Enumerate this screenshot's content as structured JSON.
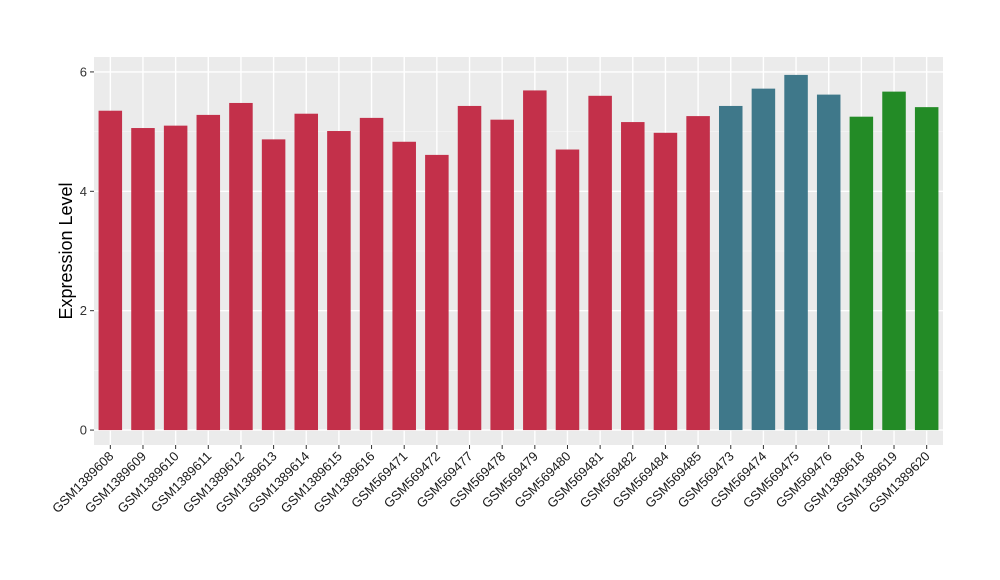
{
  "chart_data": {
    "type": "bar",
    "title": "",
    "xlabel": "",
    "ylabel": "Expression Level",
    "ylim": [
      -0.25,
      6.25
    ],
    "yticks": [
      0,
      2,
      4,
      6
    ],
    "grid": true,
    "legend": "none",
    "categories": [
      "GSM1389608",
      "GSM1389609",
      "GSM1389610",
      "GSM1389611",
      "GSM1389612",
      "GSM1389613",
      "GSM1389614",
      "GSM1389615",
      "GSM1389616",
      "GSM569471",
      "GSM569472",
      "GSM569477",
      "GSM569478",
      "GSM569479",
      "GSM569480",
      "GSM569481",
      "GSM569482",
      "GSM569484",
      "GSM569485",
      "GSM569473",
      "GSM569474",
      "GSM569475",
      "GSM569476",
      "GSM1389618",
      "GSM1389619",
      "GSM1389620"
    ],
    "values": [
      5.35,
      5.06,
      5.1,
      5.28,
      5.48,
      4.87,
      5.3,
      5.01,
      5.23,
      4.83,
      4.61,
      5.43,
      5.2,
      5.69,
      4.7,
      5.6,
      5.16,
      4.98,
      5.26,
      5.43,
      5.72,
      5.95,
      5.62,
      5.25,
      5.67,
      5.41
    ],
    "colors": [
      "#C3304A",
      "#C3304A",
      "#C3304A",
      "#C3304A",
      "#C3304A",
      "#C3304A",
      "#C3304A",
      "#C3304A",
      "#C3304A",
      "#C3304A",
      "#C3304A",
      "#C3304A",
      "#C3304A",
      "#C3304A",
      "#C3304A",
      "#C3304A",
      "#C3304A",
      "#C3304A",
      "#C3304A",
      "#3F788A",
      "#3F788A",
      "#3F788A",
      "#3F788A",
      "#238B26",
      "#238B26",
      "#238B26"
    ]
  }
}
